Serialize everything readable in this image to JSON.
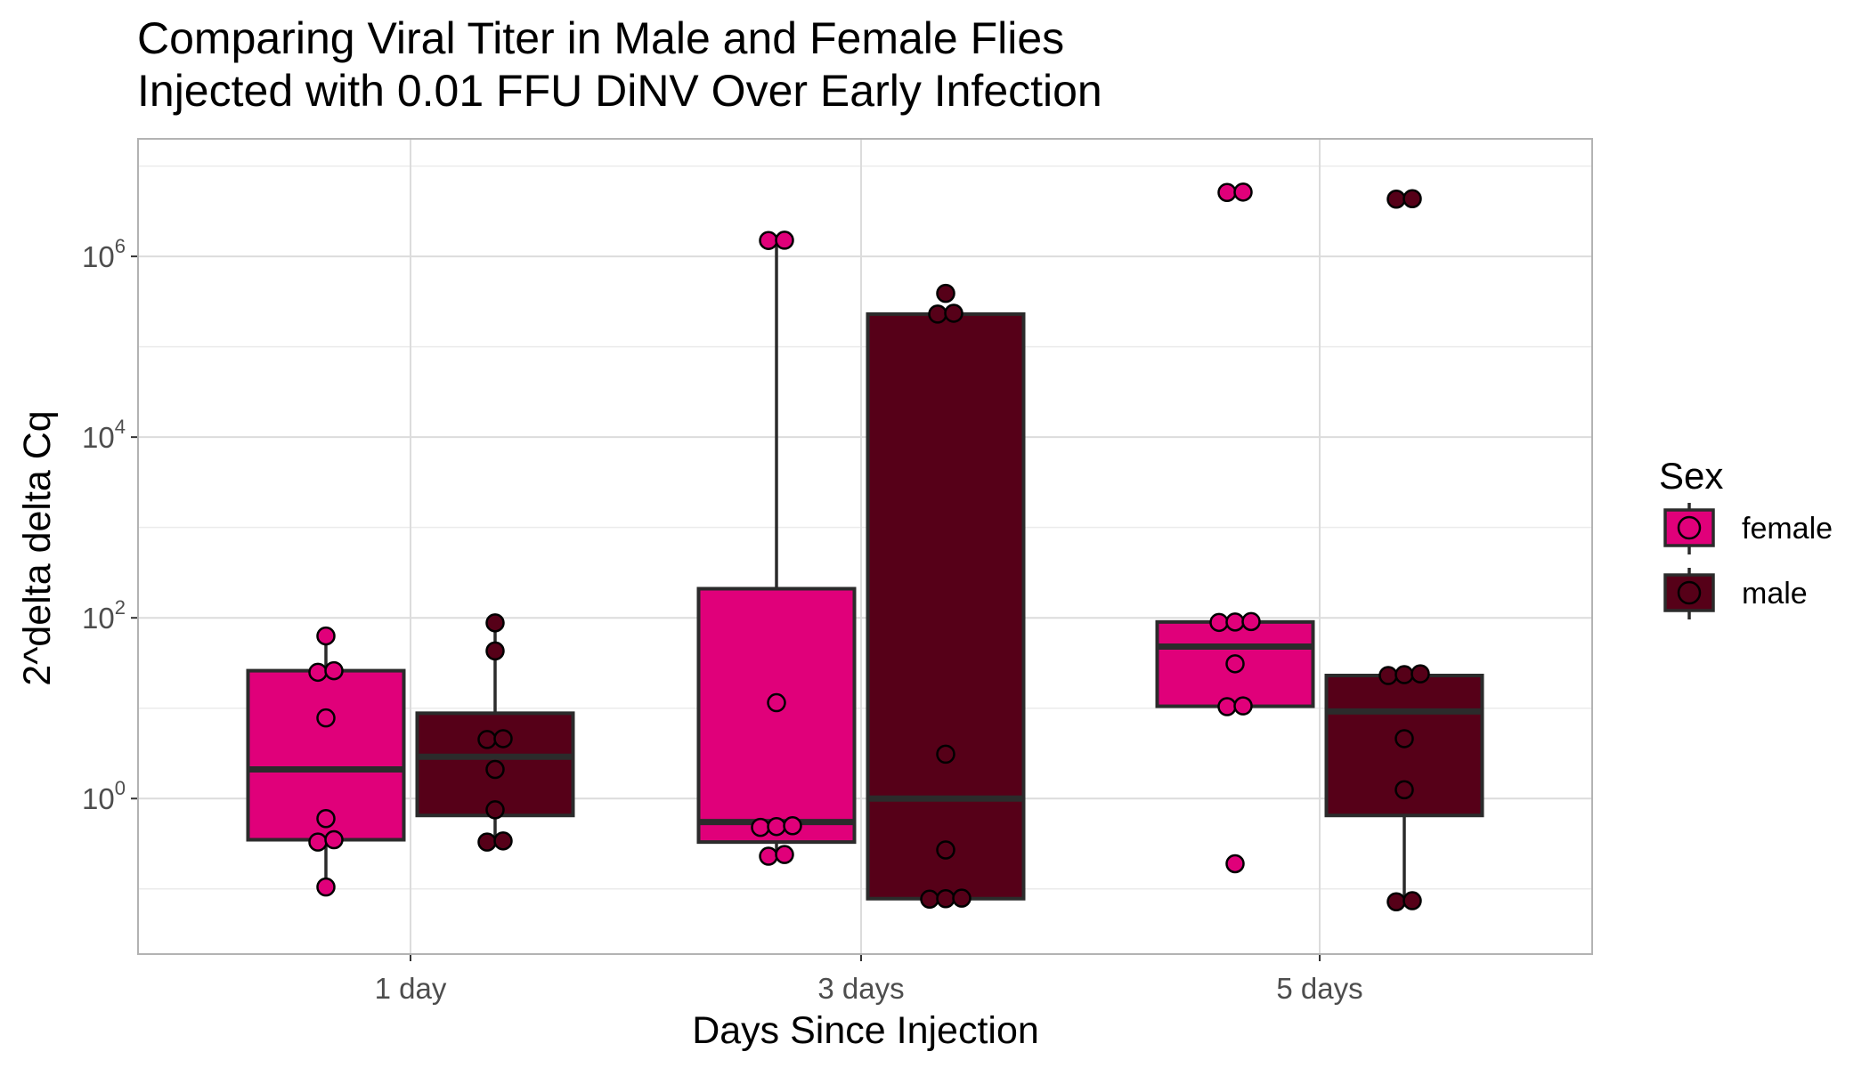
{
  "chart_data": {
    "type": "box",
    "title": [
      "Comparing Viral Titer in Male and Female Flies",
      "Injected with 0.01 FFU DiNV Over Early Infection"
    ],
    "xlabel": "Days Since Injection",
    "ylabel": "2^delta delta Cq",
    "y_scale": "log10",
    "ylim": [
      0.019,
      20000000
    ],
    "y_ticks": [
      {
        "value": 1,
        "base": "10",
        "exp": "0"
      },
      {
        "value": 100,
        "base": "10",
        "exp": "2"
      },
      {
        "value": 10000,
        "base": "10",
        "exp": "4"
      },
      {
        "value": 1000000,
        "base": "10",
        "exp": "6"
      }
    ],
    "categories": [
      "1 day",
      "3 days",
      "5 days"
    ],
    "legend": {
      "title": "Sex",
      "position": "right"
    },
    "grid": true,
    "series": [
      {
        "name": "female",
        "color": "#e0007a",
        "boxes": [
          {
            "lower_whisker": 0.105,
            "q1": 0.35,
            "median": 2.1,
            "q3": 26,
            "upper_whisker": 63
          },
          {
            "lower_whisker": 0.23,
            "q1": 0.33,
            "median": 0.55,
            "q3": 210,
            "upper_whisker": 1500000
          },
          {
            "lower_whisker": 10.5,
            "q1": 10.5,
            "median": 48,
            "q3": 90,
            "upper_whisker": 90
          }
        ],
        "points": [
          [
            0.105,
            0.33,
            0.35,
            0.6,
            7.8,
            25,
            26,
            63
          ],
          [
            0.23,
            0.24,
            0.48,
            0.49,
            0.5,
            11.5,
            1500000,
            1510000
          ],
          [
            0.19,
            10.4,
            10.6,
            31,
            89,
            90,
            91,
            5100000,
            5150000
          ]
        ]
      },
      {
        "name": "male",
        "color": "#560018",
        "boxes": [
          {
            "lower_whisker": 0.33,
            "q1": 0.65,
            "median": 2.9,
            "q3": 8.8,
            "upper_whisker": 88
          },
          {
            "lower_whisker": 0.078,
            "q1": 0.078,
            "median": 1,
            "q3": 230000,
            "upper_whisker": 230000
          },
          {
            "lower_whisker": 0.073,
            "q1": 0.65,
            "median": 9.2,
            "q3": 23,
            "upper_whisker": 24
          }
        ],
        "points": [
          [
            0.33,
            0.34,
            0.75,
            2.1,
            4.5,
            4.6,
            43,
            88
          ],
          [
            0.077,
            0.078,
            0.079,
            0.27,
            3.1,
            230000,
            235000,
            390000
          ],
          [
            0.072,
            0.074,
            1.25,
            4.6,
            23,
            23.5,
            24,
            4300000,
            4350000
          ]
        ]
      }
    ]
  }
}
